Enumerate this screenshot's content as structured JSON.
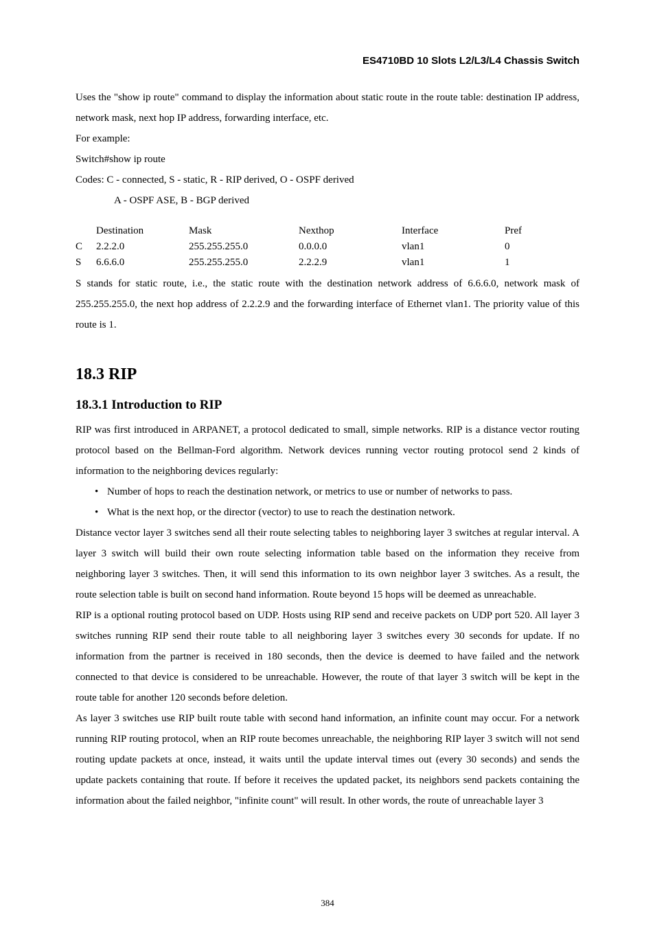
{
  "header": {
    "title": "ES4710BD 10 Slots L2/L3/L4 Chassis Switch"
  },
  "intro": {
    "p1": "Uses the \"show ip route\" command to display the information about static route in the route table: destination IP address, network mask, next hop IP address, forwarding interface, etc.",
    "p2": "For example:",
    "p3": "Switch#show ip route",
    "p4": "Codes: C - connected, S - static, R - RIP derived, O - OSPF derived",
    "p5": "A - OSPF ASE, B - BGP derived"
  },
  "routeTable": {
    "headers": {
      "code": "",
      "dest": "Destination",
      "mask": "Mask",
      "next": "Nexthop",
      "iface": "Interface",
      "pref": "Pref"
    },
    "rows": [
      {
        "code": "C",
        "dest": "2.2.2.0",
        "mask": "255.255.255.0",
        "next": "0.0.0.0",
        "iface": "vlan1",
        "pref": "0"
      },
      {
        "code": "S",
        "dest": "6.6.6.0",
        "mask": "255.255.255.0",
        "next": "2.2.2.9",
        "iface": "vlan1",
        "pref": "1"
      }
    ]
  },
  "afterTable": {
    "p1": "S stands for static route, i.e., the static route with the destination network address of 6.6.6.0, network mask of 255.255.255.0, the next hop address of 2.2.2.9 and the forwarding interface of Ethernet vlan1. The priority value of this route is 1."
  },
  "section18_3": {
    "heading": "18.3    RIP"
  },
  "section18_3_1": {
    "heading": "18.3.1    Introduction to RIP",
    "p1": "RIP was first introduced in ARPANET, a protocol dedicated to small, simple networks. RIP is a distance vector routing protocol based on the Bellman-Ford algorithm. Network devices running vector routing protocol send 2 kinds of information to the neighboring devices regularly:",
    "bullets": {
      "b1": "Number of hops to reach the destination network, or metrics to use or number of networks to pass.",
      "b2": "What is the next hop, or the director (vector) to use to reach the destination network."
    },
    "p2": "Distance vector layer 3 switches send all their route selecting tables to neighboring layer 3 switches at regular interval. A layer 3 switch will build their own route selecting information table based on the information they receive from neighboring layer 3 switches. Then, it will send this information to its own neighbor layer 3 switches. As a result, the route selection table is built on second hand information. Route beyond 15 hops will be deemed as unreachable.",
    "p3": "RIP is a optional routing protocol based on UDP. Hosts using RIP send and receive packets on UDP port 520. All layer 3 switches running RIP send their route table to all neighboring layer 3 switches every 30 seconds for update. If no information from the partner is received in 180 seconds, then the device is deemed to have failed and the network connected to that device is considered to be unreachable. However, the route of that layer 3 switch will be kept in the route table for another 120 seconds before deletion.",
    "p4": "As layer 3 switches use RIP built route table with second hand information, an infinite count may occur. For a network running RIP routing protocol, when an RIP route becomes unreachable, the neighboring RIP layer 3 switch will not send routing update packets at once, instead, it waits until the update interval times out (every 30 seconds) and sends the update packets containing that route. If before it receives the updated packet, its neighbors send packets containing the information about the failed neighbor, \"infinite count\" will result. In other words, the route of unreachable layer 3"
  },
  "pageNumber": "384"
}
